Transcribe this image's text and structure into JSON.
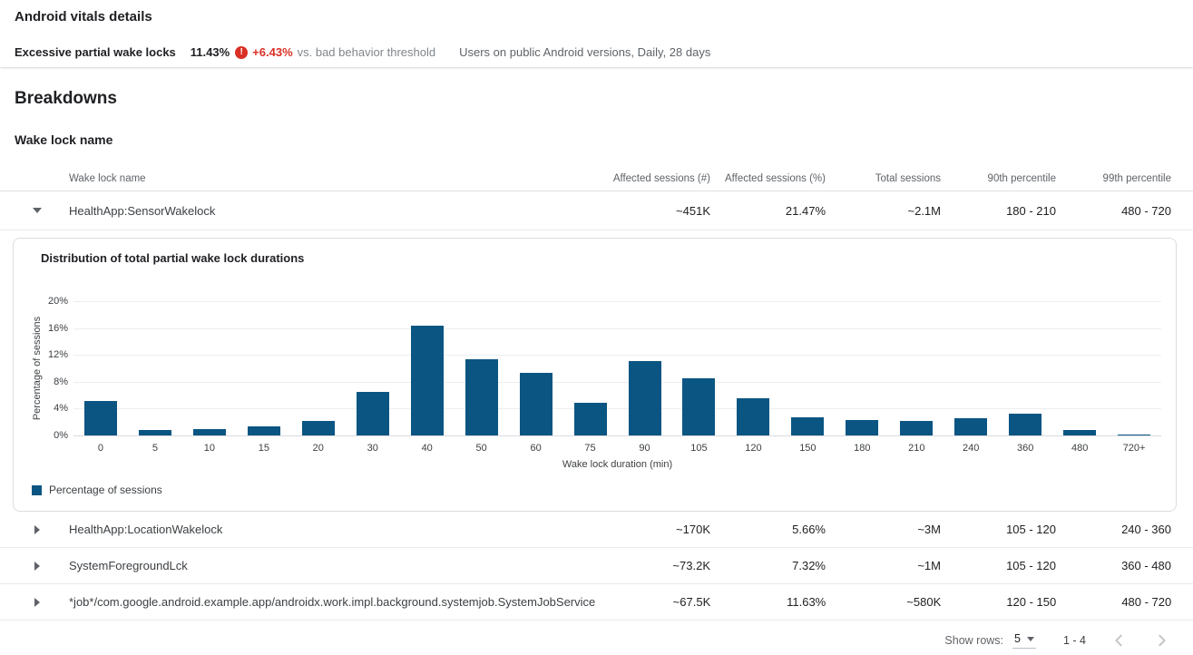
{
  "header": {
    "title": "Android vitals details",
    "metric_label": "Excessive partial wake locks",
    "metric_value": "11.43%",
    "error_icon_glyph": "!",
    "delta": "+6.43%",
    "threshold_label": "vs. bad behavior threshold",
    "scope": "Users on public Android versions, Daily, 28 days"
  },
  "breakdowns": {
    "title": "Breakdowns",
    "section_title": "Wake lock name"
  },
  "table": {
    "columns": {
      "name": "Wake lock name",
      "affected_count": "Affected sessions (#)",
      "affected_pct": "Affected sessions (%)",
      "total": "Total sessions",
      "p90": "90th percentile",
      "p99": "99th percentile"
    },
    "rows": [
      {
        "name": "HealthApp:SensorWakelock",
        "expanded": true,
        "affected_count": "~451K",
        "affected_pct": "21.47%",
        "total": "~2.1M",
        "p90": "180 - 210",
        "p99": "480 - 720"
      },
      {
        "name": "HealthApp:LocationWakelock",
        "expanded": false,
        "affected_count": "~170K",
        "affected_pct": "5.66%",
        "total": "~3M",
        "p90": "105 - 120",
        "p99": "240 - 360"
      },
      {
        "name": "SystemForegroundLck",
        "expanded": false,
        "affected_count": "~73.2K",
        "affected_pct": "7.32%",
        "total": "~1M",
        "p90": "105 - 120",
        "p99": "360 - 480"
      },
      {
        "name": "*job*/com.google.android.example.app/androidx.work.impl.background.systemjob.SystemJobService",
        "expanded": false,
        "affected_count": "~67.5K",
        "affected_pct": "11.63%",
        "total": "~580K",
        "p90": "120 - 150",
        "p99": "480 - 720"
      }
    ]
  },
  "chart_data": {
    "type": "bar",
    "title": "Distribution of total partial wake lock durations",
    "categories": [
      "0",
      "5",
      "10",
      "15",
      "20",
      "30",
      "40",
      "50",
      "60",
      "75",
      "90",
      "105",
      "120",
      "150",
      "180",
      "210",
      "240",
      "360",
      "480",
      "720+"
    ],
    "values": [
      5.1,
      0.8,
      1.0,
      1.3,
      2.1,
      6.5,
      16.3,
      11.4,
      9.3,
      4.9,
      11.1,
      8.5,
      5.5,
      2.7,
      2.3,
      2.1,
      2.6,
      3.2,
      0.8,
      0.2
    ],
    "xlabel": "Wake lock duration (min)",
    "ylabel": "Percentage of sessions",
    "ylim": [
      0,
      20
    ],
    "yticks": [
      "20%",
      "16%",
      "12%",
      "8%",
      "4%",
      "0%"
    ],
    "grid": true,
    "bar_color": "#0b5583",
    "legend": {
      "label": "Percentage of sessions",
      "position": "bottom-left"
    }
  },
  "pagination": {
    "show_rows_label": "Show rows:",
    "rows_per_page": "5",
    "range": "1 - 4"
  },
  "colors": {
    "bar": "#0b5583",
    "error_red": "#d93025",
    "text_primary": "#202124",
    "text_secondary": "#5f6368",
    "divider": "#e8eaed"
  }
}
